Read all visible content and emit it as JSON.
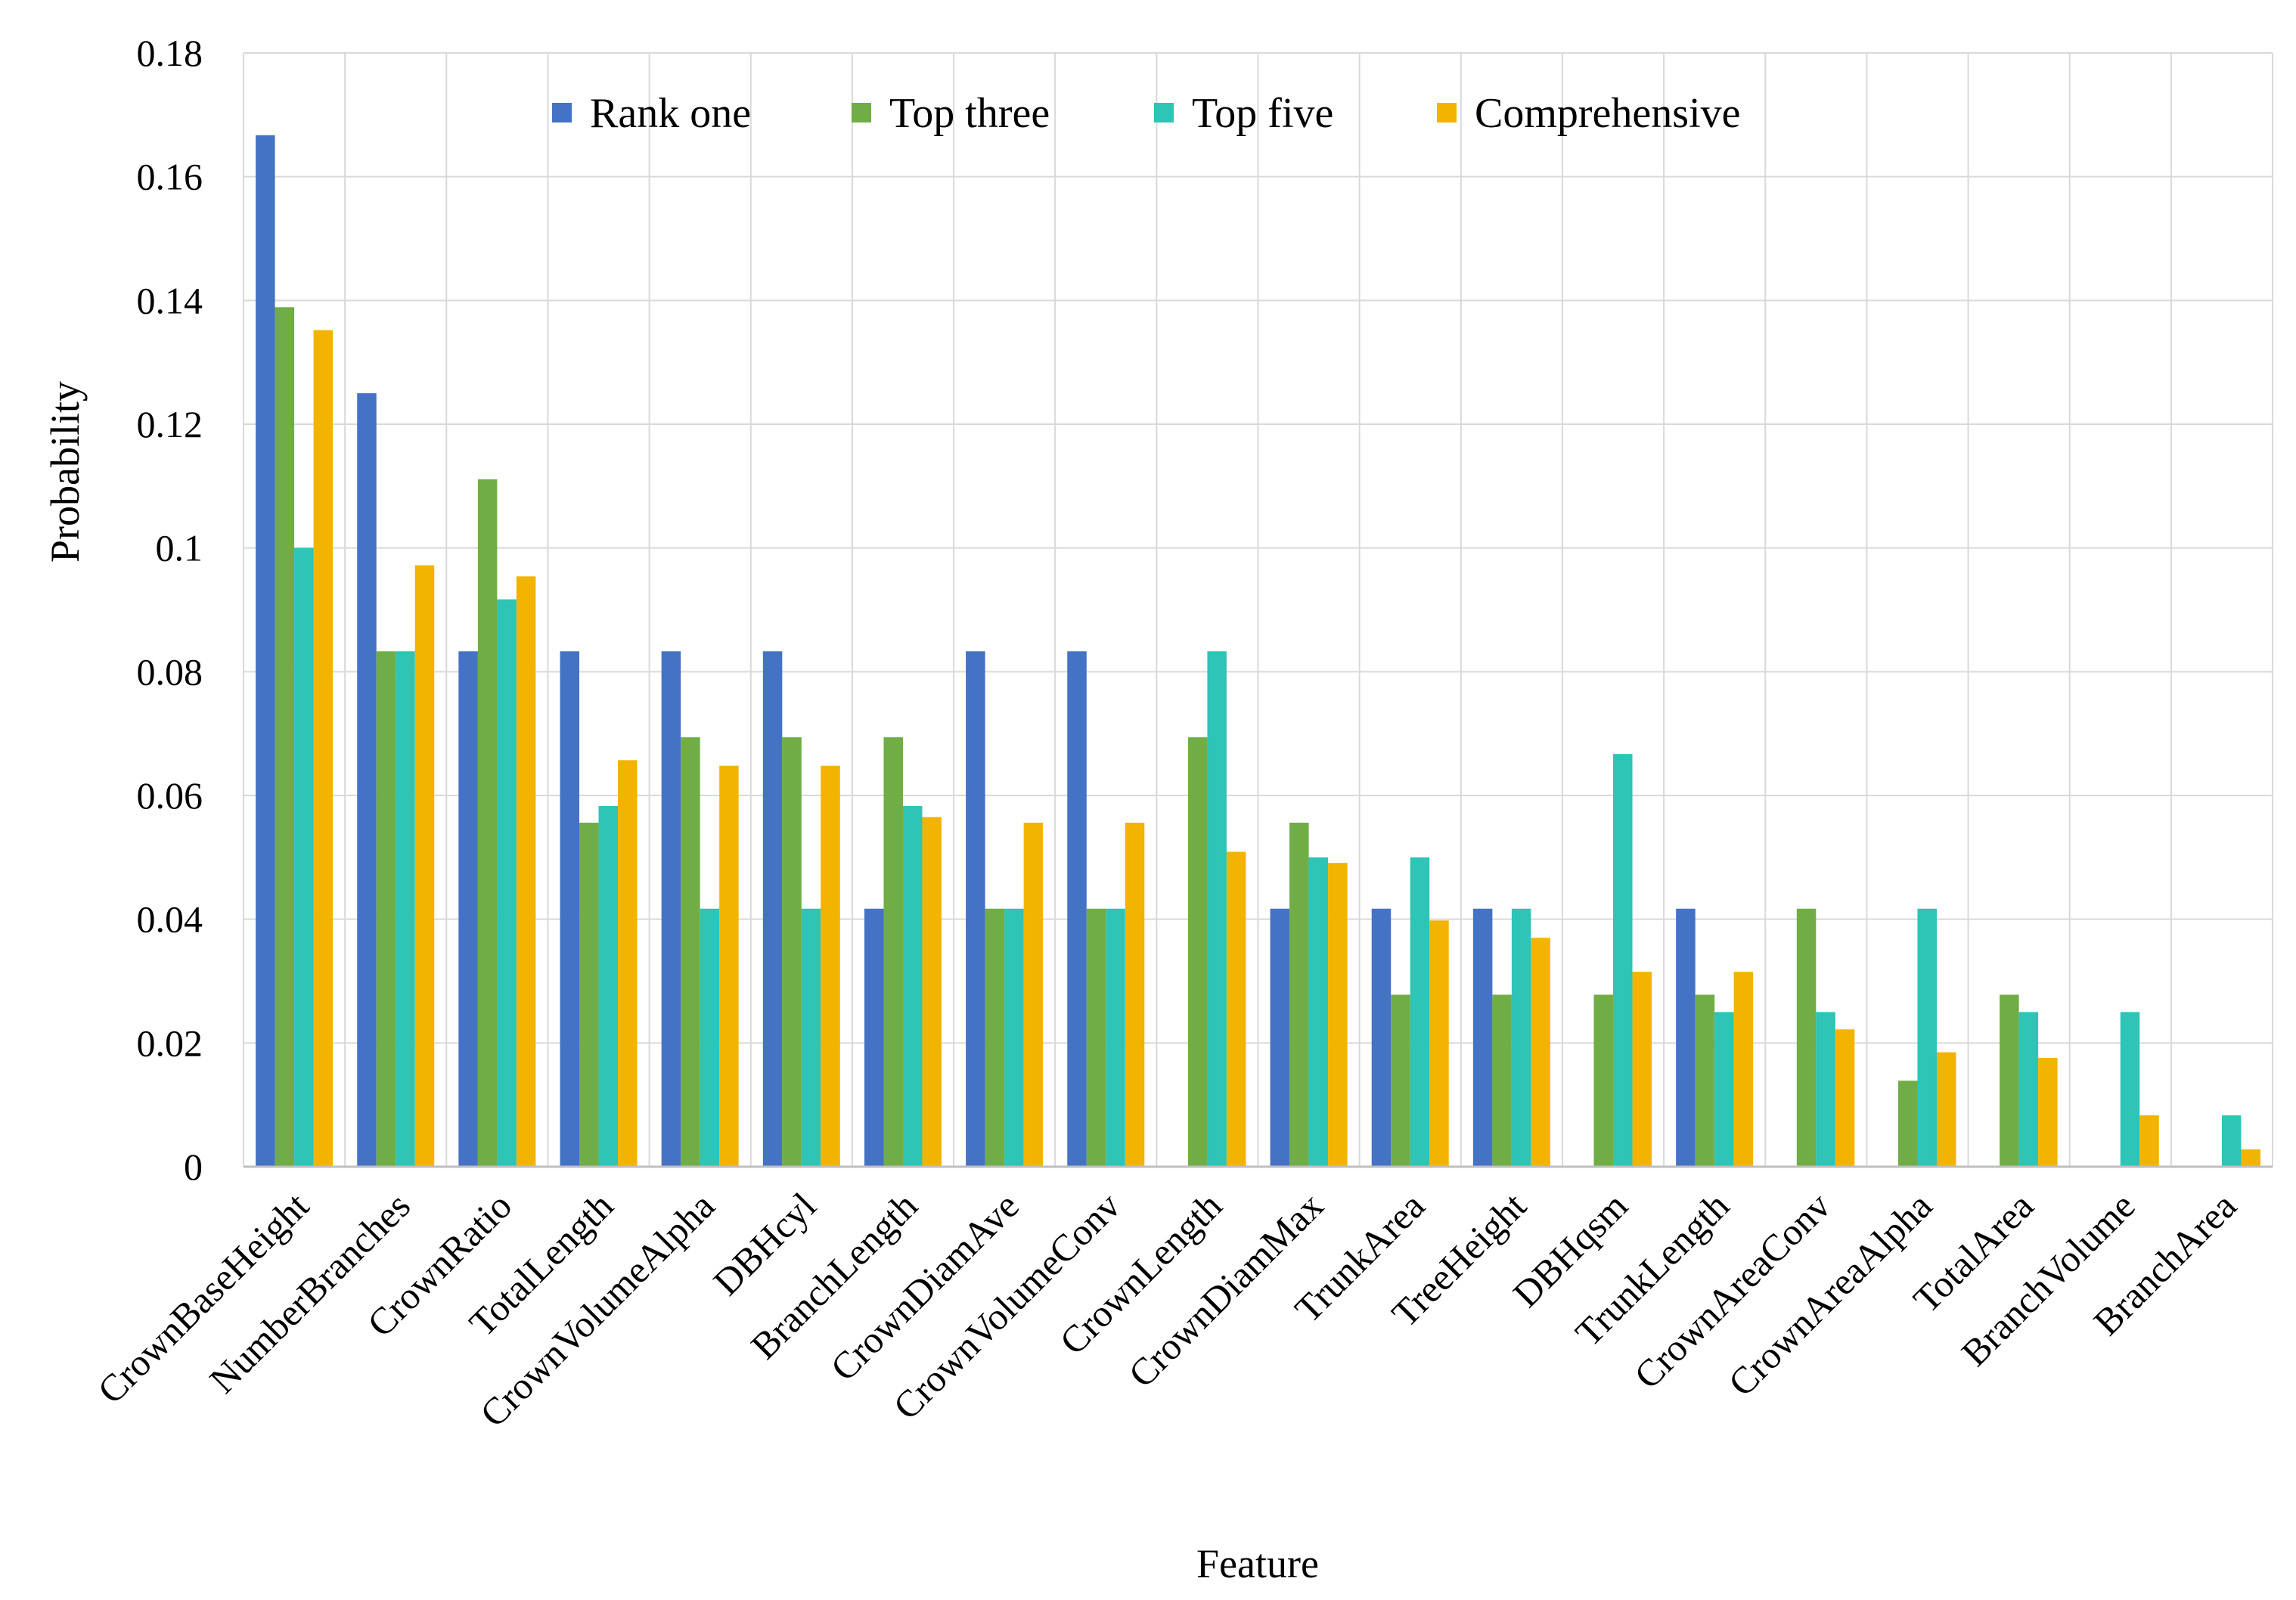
{
  "chart_data": {
    "type": "bar",
    "title": "",
    "xlabel": "Feature",
    "ylabel": "Probability",
    "ylim": [
      0,
      0.18
    ],
    "yticks": [
      0,
      0.02,
      0.04,
      0.06,
      0.08,
      0.1,
      0.12,
      0.14,
      0.16,
      0.18
    ],
    "ytick_labels": [
      "0",
      "0.02",
      "0.04",
      "0.06",
      "0.08",
      "0.1",
      "0.12",
      "0.14",
      "0.16",
      "0.18"
    ],
    "grid": true,
    "legend_position": "top",
    "categories": [
      "CrownBaseHeight",
      "NumberBranches",
      "CrownRatio",
      "TotalLength",
      "CrownVolumeAlpha",
      "DBHcyl",
      "BranchLength",
      "CrownDiamAve",
      "CrownVolumeConv",
      "CrownLength",
      "CrownDiamMax",
      "TrunkArea",
      "TreeHeight",
      "DBHqsm",
      "TrunkLength",
      "CrownAreaConv",
      "CrownAreaAlpha",
      "TotalArea",
      "BranchVolume",
      "BranchArea"
    ],
    "series": [
      {
        "name": "Rank one",
        "color": "#4472C4",
        "values": [
          0.1667,
          0.125,
          0.0833,
          0.0833,
          0.0833,
          0.0833,
          0.0417,
          0.0833,
          0.0833,
          0,
          0.0417,
          0.0417,
          0.0417,
          0,
          0.0417,
          0,
          0,
          0,
          0,
          0
        ]
      },
      {
        "name": "Top three",
        "color": "#70AD47",
        "values": [
          0.1389,
          0.0833,
          0.1111,
          0.0556,
          0.0694,
          0.0694,
          0.0694,
          0.0417,
          0.0417,
          0.0694,
          0.0556,
          0.0278,
          0.0278,
          0.0278,
          0.0278,
          0.0417,
          0.0139,
          0.0278,
          0,
          0
        ]
      },
      {
        "name": "Top five",
        "color": "#2EC4B6",
        "values": [
          0.1,
          0.0833,
          0.0917,
          0.0583,
          0.0417,
          0.0417,
          0.0583,
          0.0417,
          0.0417,
          0.0833,
          0.05,
          0.05,
          0.0417,
          0.0667,
          0.025,
          0.025,
          0.0417,
          0.025,
          0.025,
          0.0083
        ]
      },
      {
        "name": "Comprehensive",
        "color": "#F2B400",
        "values": [
          0.1352,
          0.0972,
          0.0954,
          0.0657,
          0.0648,
          0.0648,
          0.0565,
          0.0556,
          0.0556,
          0.0509,
          0.0491,
          0.0398,
          0.037,
          0.0315,
          0.0315,
          0.0222,
          0.0185,
          0.0176,
          0.0083,
          0.0028
        ]
      }
    ]
  }
}
